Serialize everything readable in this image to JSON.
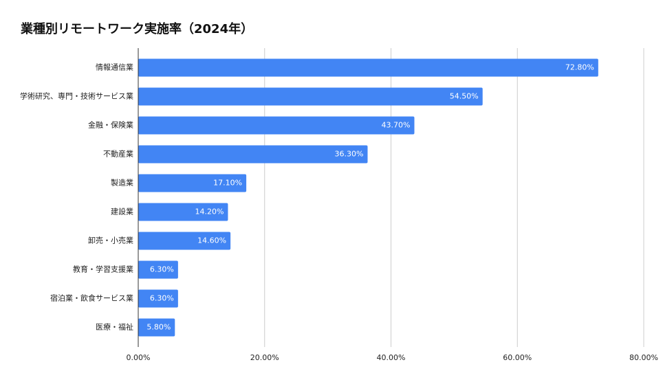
{
  "chart_data": {
    "type": "bar",
    "orientation": "horizontal",
    "title": "業種別リモートワーク実施率（2024年）",
    "xlabel": "",
    "ylabel": "",
    "categories": [
      "情報通信業",
      "学術研究、専門・技術サービス業",
      "金融・保険業",
      "不動産業",
      "製造業",
      "建設業",
      "卸売・小売業",
      "教育・学習支援業",
      "宿泊業・飲食サービス業",
      "医療・福祉"
    ],
    "values": [
      72.8,
      54.5,
      43.7,
      36.3,
      17.1,
      14.2,
      14.6,
      6.3,
      6.3,
      5.8
    ],
    "data_labels": [
      "72.80%",
      "54.50%",
      "43.70%",
      "36.30%",
      "17.10%",
      "14.20%",
      "14.60%",
      "6.30%",
      "6.30%",
      "5.80%"
    ],
    "xlim": [
      0,
      80
    ],
    "x_ticks": [
      0,
      20,
      40,
      60,
      80
    ],
    "x_tick_labels": [
      "0.00%",
      "20.00%",
      "40.00%",
      "60.00%",
      "80.00%"
    ],
    "grid": true,
    "legend": "none",
    "bar_color": "#4285f4",
    "grid_color": "#cccccc",
    "axis_color": "#333333"
  }
}
